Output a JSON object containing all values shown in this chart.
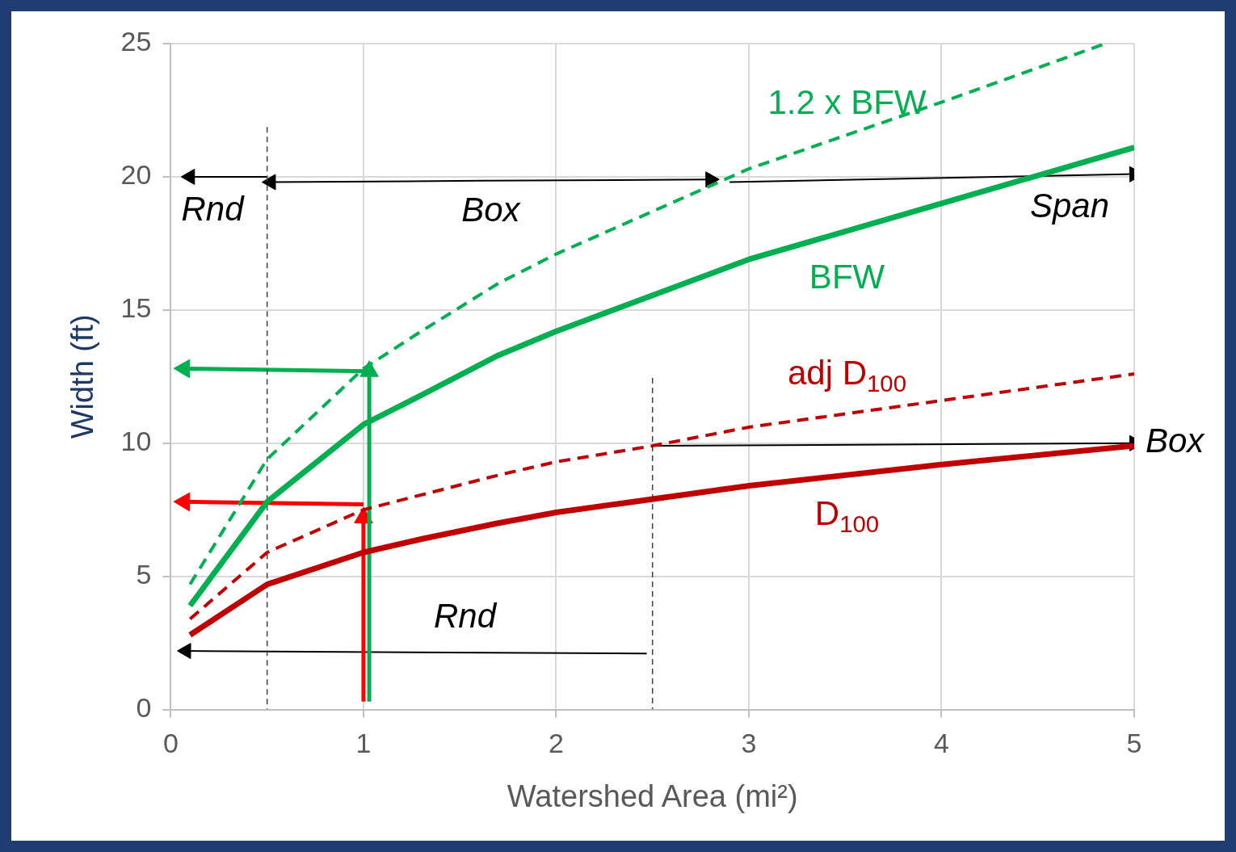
{
  "chart_data": {
    "type": "line",
    "xlabel": "Watershed Area (mi²)",
    "ylabel": "Width (ft)",
    "xlim": [
      0,
      5
    ],
    "ylim": [
      0,
      25
    ],
    "xticks": [
      0,
      1,
      2,
      3,
      4,
      5
    ],
    "yticks": [
      0,
      5,
      10,
      15,
      20,
      25
    ],
    "grid": true,
    "legend": false,
    "series": [
      {
        "name": "1.2 x BFW",
        "color": "#00b050",
        "line_style": "dashed",
        "x": [
          0.1,
          0.5,
          1,
          1.3,
          1.7,
          2,
          3,
          4,
          4.85
        ],
        "values": [
          4.7,
          9.4,
          12.8,
          14.2,
          16.0,
          17.1,
          20.3,
          22.8,
          25
        ]
      },
      {
        "name": "BFW",
        "color": "#00b050",
        "x": [
          0.1,
          0.5,
          1,
          1.3,
          1.7,
          2,
          3,
          4,
          5
        ],
        "values": [
          3.9,
          7.8,
          10.7,
          11.8,
          13.3,
          14.2,
          16.9,
          19.0,
          21.1
        ]
      },
      {
        "name": "adj D$_{100}$",
        "color": "#c00000",
        "line_style": "dashed",
        "x": [
          0.1,
          0.5,
          1,
          1.7,
          2,
          2.5,
          3,
          4,
          5
        ],
        "values": [
          3.4,
          5.9,
          7.5,
          8.8,
          9.3,
          9.9,
          10.6,
          11.6,
          12.6
        ]
      },
      {
        "name": "D$_{100}$",
        "color": "#c00000",
        "x": [
          0.1,
          0.5,
          1,
          1.3,
          1.7,
          2,
          3,
          4,
          5
        ],
        "values": [
          2.8,
          4.7,
          5.9,
          6.4,
          7.0,
          7.4,
          8.4,
          9.2,
          9.9
        ]
      },
      {
        "color": "#404040",
        "line_style": "dashed",
        "x": [
          0.5,
          0.5
        ],
        "values": [
          0,
          22
        ]
      },
      {
        "color": "#404040",
        "line_style": "dashed",
        "x": [
          2.5,
          2.5
        ],
        "values": [
          0,
          12.5
        ]
      },
      {
        "color": "#00b050",
        "marker": "triangle",
        "x": [
          1.03,
          1.03
        ],
        "values": [
          0.3,
          12.7
        ]
      },
      {
        "color": "#00b050",
        "marker": "triangle",
        "x": [
          1.03,
          0.07
        ],
        "values": [
          12.7,
          12.8
        ]
      },
      {
        "color": "#ff0000",
        "marker": "triangle",
        "x": [
          1,
          1
        ],
        "values": [
          0.3,
          7.2
        ]
      },
      {
        "color": "#ff0000",
        "marker": "triangle",
        "x": [
          1,
          0.07
        ],
        "values": [
          7.7,
          7.8
        ]
      },
      {
        "color": "#000000",
        "marker": "triangle",
        "x": [
          0.5,
          0.1
        ],
        "values": [
          20,
          20
        ]
      },
      {
        "color": "#000000",
        "marker": "triangle",
        "x": [
          0.52,
          1.6,
          2.8
        ],
        "values": [
          19.8,
          19.85,
          19.9
        ]
      },
      {
        "color": "#000000",
        "marker": "triangle",
        "x": [
          2.9,
          5
        ],
        "values": [
          19.8,
          20.1
        ]
      },
      {
        "color": "#000000",
        "marker": "triangle",
        "x": [
          2.5,
          5
        ],
        "values": [
          9.9,
          10.0
        ]
      },
      {
        "color": "#000000",
        "marker": "triangle",
        "x": [
          2.47,
          0.08
        ],
        "values": [
          2.1,
          2.2
        ]
      }
    ],
    "annotations": [
      "Rnd",
      "Box",
      "Span",
      "Box",
      "Rnd"
    ]
  }
}
